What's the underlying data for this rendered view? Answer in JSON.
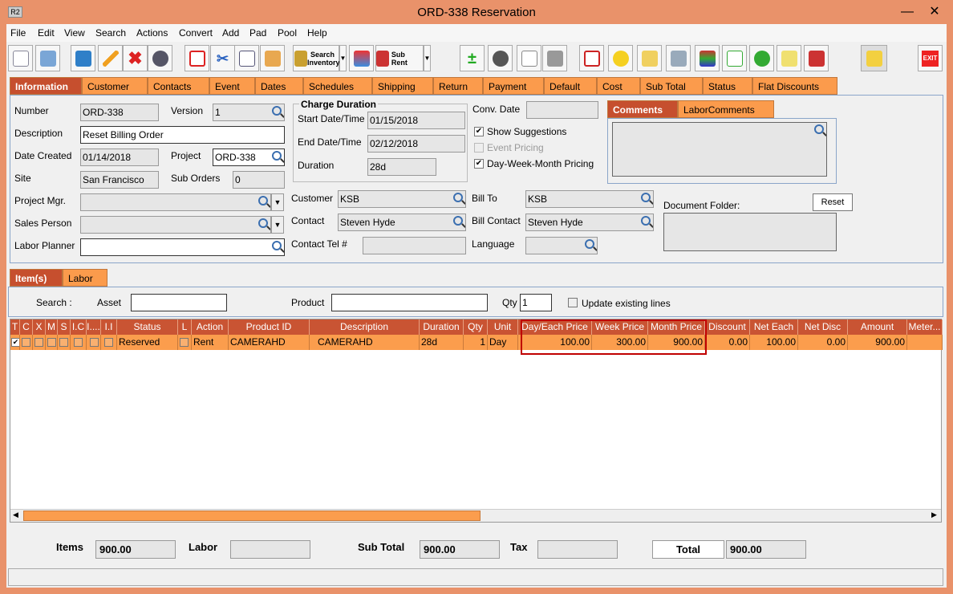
{
  "window": {
    "title": "ORD-338 Reservation",
    "app_icon": "R2",
    "minimize": "—",
    "close": "✕"
  },
  "menu": [
    "File",
    "Edit",
    "View",
    "Search",
    "Actions",
    "Convert",
    "Add",
    "Pad",
    "Pool",
    "Help"
  ],
  "toolbar": {
    "search_inventory": "Search Inventory",
    "sub_rent": "Sub Rent",
    "exit": "EXIT"
  },
  "tabs": [
    "Information",
    "Customer",
    "Contacts",
    "Event",
    "Dates",
    "Schedules",
    "Shipping",
    "Return",
    "Payment",
    "Default",
    "Cost",
    "Sub Total",
    "Status",
    "Flat Discounts"
  ],
  "info": {
    "number_label": "Number",
    "number": "ORD-338",
    "version_label": "Version",
    "version": "1",
    "description_label": "Description",
    "description": "Reset Billing Order",
    "date_created_label": "Date Created",
    "date_created": "01/14/2018",
    "project_label": "Project",
    "project": "ORD-338",
    "site_label": "Site",
    "site": "San Francisco",
    "sub_orders_label": "Sub Orders",
    "sub_orders": "0",
    "project_mgr_label": "Project Mgr.",
    "sales_person_label": "Sales Person",
    "labor_planner_label": "Labor Planner",
    "charge_duration_label": "Charge Duration",
    "start_label": "Start Date/Time",
    "start": "01/15/2018",
    "end_label": "End Date/Time",
    "end": "02/12/2018",
    "duration_label": "Duration",
    "duration": "28d",
    "conv_date_label": "Conv. Date",
    "show_suggestions": "Show Suggestions",
    "event_pricing": "Event Pricing",
    "dwm_pricing": "Day-Week-Month Pricing",
    "customer_label": "Customer",
    "customer": "KSB",
    "contact_label": "Contact",
    "contact": "Steven Hyde",
    "contact_tel_label": "Contact Tel #",
    "bill_to_label": "Bill To",
    "bill_to": "KSB",
    "bill_contact_label": "Bill Contact",
    "bill_contact": "Steven Hyde",
    "language_label": "Language",
    "comments_tab": "Comments",
    "labor_comments_tab": "LaborComments",
    "document_folder_label": "Document Folder:",
    "reset": "Reset"
  },
  "subtabs": [
    "Item(s)",
    "Labor"
  ],
  "search": {
    "label": "Search :",
    "asset_label": "Asset",
    "product_label": "Product",
    "qty_label": "Qty",
    "qty": "1",
    "update_existing": "Update existing lines"
  },
  "grid": {
    "columns": [
      "T",
      "C",
      "X",
      "M",
      "S",
      "I.C",
      "I....",
      "I.I",
      "Status",
      "L",
      "Action",
      "Product ID",
      "Description",
      "Duration",
      "Qty",
      "Unit",
      "Day/Each Price",
      "Week Price",
      "Month Price",
      "Discount",
      "Net Each",
      "Net Disc",
      "Amount",
      "Meter..."
    ],
    "rows": [
      {
        "status": "Reserved",
        "action": "Rent",
        "product_id": "CAMERAHD",
        "description": "CAMERAHD",
        "duration": "28d",
        "qty": "1",
        "unit": "Day",
        "day_price": "100.00",
        "week_price": "300.00",
        "month_price": "900.00",
        "discount": "0.00",
        "net_each": "100.00",
        "net_disc": "0.00",
        "amount": "900.00"
      }
    ]
  },
  "totals": {
    "items_label": "Items",
    "items": "900.00",
    "labor_label": "Labor",
    "subtotal_label": "Sub Total",
    "subtotal": "900.00",
    "tax_label": "Tax",
    "total_label": "Total",
    "total": "900.00"
  },
  "colors": {
    "frame": "#E9926A",
    "tab": "#FB9B4C",
    "tab_selected": "#C64F2E",
    "grid_header": "#C95433",
    "grid_row": "#FB9D4D",
    "highlight": "#C00000"
  }
}
